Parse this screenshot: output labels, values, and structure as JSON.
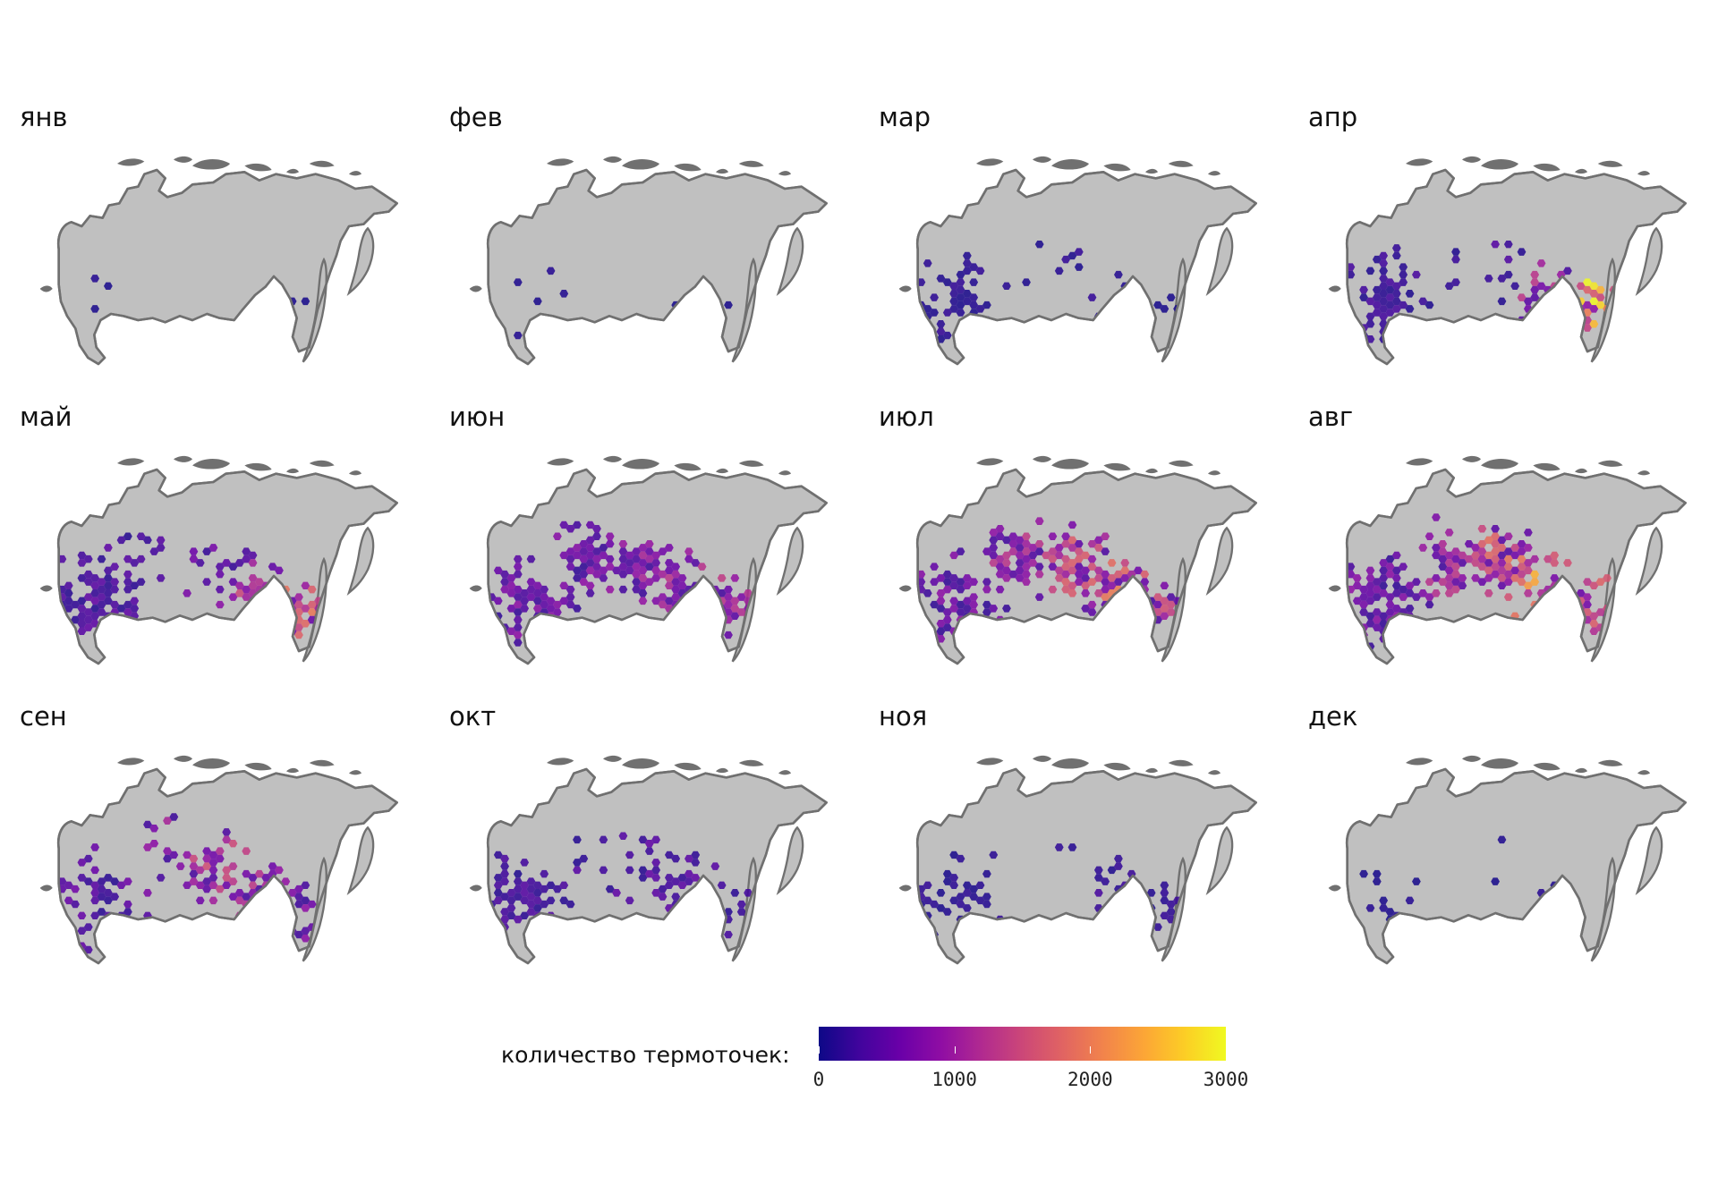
{
  "panels": [
    {
      "title": "янв",
      "level": [
        0.05,
        0.0,
        0.02,
        0.05,
        0.1
      ],
      "hot": [
        0.04,
        0.03,
        0.02,
        0.03,
        0.02,
        0.02
      ]
    },
    {
      "title": "фев",
      "level": [
        0.1,
        0.0,
        0.01,
        0.05,
        0.2
      ],
      "hot": [
        0.05,
        0.03,
        0.02,
        0.03,
        0.02,
        0.02
      ]
    },
    {
      "title": "мар",
      "level": [
        0.55,
        0.05,
        0.1,
        0.35,
        0.45
      ],
      "hot": [
        0.08,
        0.05,
        0.04,
        0.05,
        0.05,
        0.04
      ]
    },
    {
      "title": "апр",
      "level": [
        0.8,
        0.2,
        0.2,
        0.7,
        0.85
      ],
      "hot": [
        0.1,
        0.08,
        0.06,
        0.1,
        0.3,
        0.75
      ]
    },
    {
      "title": "май",
      "level": [
        0.9,
        0.35,
        0.35,
        0.8,
        0.9
      ],
      "hot": [
        0.15,
        0.12,
        0.1,
        0.2,
        0.35,
        0.45
      ]
    },
    {
      "title": "июн",
      "level": [
        0.8,
        0.8,
        0.9,
        0.95,
        0.8
      ],
      "hot": [
        0.12,
        0.2,
        0.2,
        0.25,
        0.3,
        0.3
      ]
    },
    {
      "title": "июл",
      "level": [
        0.75,
        0.85,
        0.9,
        0.95,
        0.75
      ],
      "hot": [
        0.15,
        0.2,
        0.3,
        0.4,
        0.45,
        0.35
      ]
    },
    {
      "title": "авг",
      "level": [
        0.8,
        0.8,
        0.9,
        0.95,
        0.8
      ],
      "hot": [
        0.15,
        0.2,
        0.3,
        0.45,
        0.55,
        0.4
      ]
    },
    {
      "title": "сен",
      "level": [
        0.65,
        0.4,
        0.6,
        0.75,
        0.65
      ],
      "hot": [
        0.12,
        0.15,
        0.25,
        0.35,
        0.3,
        0.2
      ]
    },
    {
      "title": "окт",
      "level": [
        0.7,
        0.25,
        0.35,
        0.5,
        0.55
      ],
      "hot": [
        0.1,
        0.1,
        0.12,
        0.12,
        0.12,
        0.1
      ]
    },
    {
      "title": "ноя",
      "level": [
        0.6,
        0.05,
        0.1,
        0.25,
        0.55
      ],
      "hot": [
        0.08,
        0.05,
        0.04,
        0.05,
        0.08,
        0.06
      ]
    },
    {
      "title": "дек",
      "level": [
        0.2,
        0.03,
        0.03,
        0.05,
        0.15
      ],
      "hot": [
        0.05,
        0.03,
        0.02,
        0.03,
        0.03,
        0.03
      ]
    }
  ],
  "legend": {
    "label": "количество термоточек:",
    "min": 0,
    "max": 3000,
    "ticks": [
      "0",
      "1000",
      "2000",
      "3000"
    ],
    "palette": "plasma"
  },
  "colors": {
    "land": "#c0c0c0",
    "outline": "#707070",
    "islands": "#707070"
  }
}
